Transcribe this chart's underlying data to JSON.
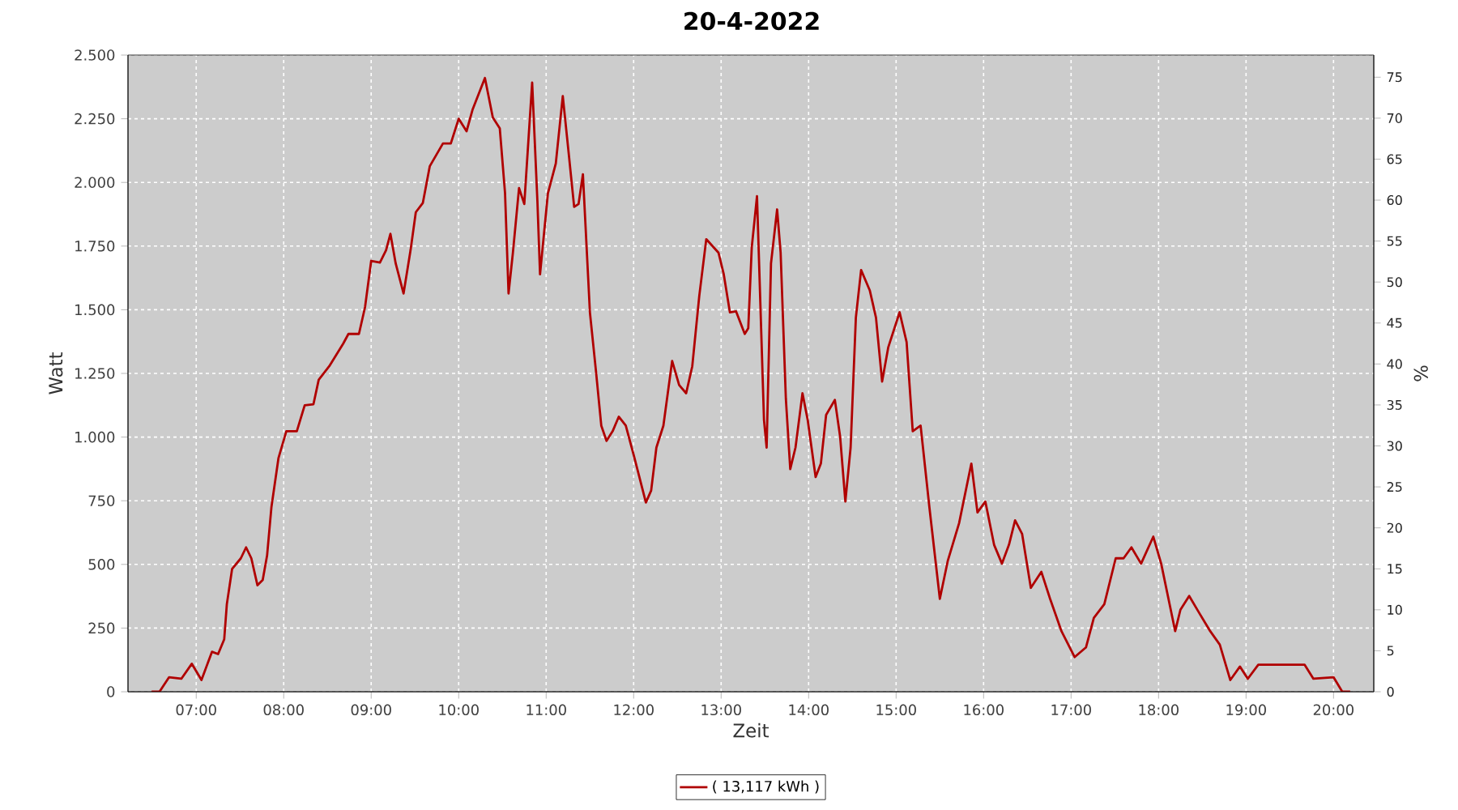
{
  "chart_data": {
    "type": "line",
    "title": "20-4-2022",
    "xlabel": "Zeit",
    "ylabel": "Watt",
    "y2label": "%",
    "x": [
      6.49,
      6.58,
      6.69,
      6.83,
      6.95,
      7.06,
      7.18,
      7.25,
      7.32,
      7.35,
      7.41,
      7.51,
      7.57,
      7.63,
      7.7,
      7.76,
      7.81,
      7.86,
      7.94,
      8.03,
      8.15,
      8.24,
      8.34,
      8.4,
      8.52,
      8.68,
      8.74,
      8.86,
      8.93,
      9.0,
      9.1,
      9.17,
      9.22,
      9.28,
      9.37,
      9.45,
      9.51,
      9.59,
      9.67,
      9.82,
      9.91,
      10.0,
      10.09,
      10.16,
      10.3,
      10.39,
      10.47,
      10.53,
      10.57,
      10.62,
      10.69,
      10.75,
      10.84,
      10.9,
      10.93,
      11.02,
      11.11,
      11.19,
      11.26,
      11.32,
      11.37,
      11.42,
      11.5,
      11.57,
      11.63,
      11.69,
      11.76,
      11.83,
      11.91,
      12.01,
      12.14,
      12.2,
      12.26,
      12.34,
      12.44,
      12.52,
      12.6,
      12.67,
      12.75,
      12.83,
      12.97,
      13.03,
      13.1,
      13.17,
      13.27,
      13.31,
      13.35,
      13.41,
      13.49,
      13.52,
      13.57,
      13.64,
      13.68,
      13.74,
      13.79,
      13.85,
      13.93,
      13.99,
      14.08,
      14.14,
      14.2,
      14.3,
      14.36,
      14.42,
      14.48,
      14.54,
      14.6,
      14.7,
      14.77,
      14.84,
      14.91,
      15.04,
      15.12,
      15.19,
      15.28,
      15.38,
      15.5,
      15.59,
      15.72,
      15.86,
      15.93,
      16.02,
      16.12,
      16.21,
      16.29,
      16.36,
      16.44,
      16.54,
      16.66,
      16.76,
      16.89,
      17.04,
      17.17,
      17.26,
      17.38,
      17.51,
      17.6,
      17.69,
      17.8,
      17.94,
      18.03,
      18.19,
      18.25,
      18.35,
      18.46,
      18.59,
      18.7,
      18.82,
      18.93,
      19.02,
      19.14,
      19.67,
      19.77,
      20.0,
      20.1,
      20.19
    ],
    "series": [
      {
        "name": "( 13,117 kWh )",
        "color": "#b00000",
        "values": [
          0,
          0,
          57,
          51,
          110,
          46,
          157,
          148,
          206,
          344,
          482,
          524,
          567,
          524,
          418,
          439,
          535,
          726,
          917,
          1023,
          1023,
          1125,
          1129,
          1225,
          1278,
          1367,
          1405,
          1405,
          1511,
          1692,
          1685,
          1734,
          1798,
          1682,
          1564,
          1734,
          1883,
          1919,
          2064,
          2153,
          2153,
          2250,
          2201,
          2287,
          2410,
          2255,
          2212,
          1957,
          1564,
          1724,
          1978,
          1915,
          2392,
          1925,
          1639,
          1957,
          2074,
          2339,
          2106,
          1904,
          1915,
          2032,
          1490,
          1257,
          1045,
          985,
          1023,
          1080,
          1045,
          917,
          743,
          790,
          959,
          1045,
          1299,
          1204,
          1172,
          1278,
          1554,
          1777,
          1724,
          1639,
          1490,
          1494,
          1405,
          1427,
          1745,
          1946,
          1066,
          959,
          1682,
          1894,
          1724,
          1150,
          874,
          959,
          1172,
          1066,
          843,
          896,
          1087,
          1146,
          1002,
          747,
          959,
          1469,
          1656,
          1575,
          1469,
          1218,
          1352,
          1490,
          1373,
          1023,
          1045,
          726,
          365,
          513,
          662,
          896,
          704,
          747,
          577,
          503,
          577,
          673,
          620,
          408,
          471,
          365,
          238,
          136,
          174,
          290,
          344,
          524,
          524,
          567,
          503,
          609,
          503,
          238,
          322,
          376,
          312,
          238,
          185,
          46,
          99,
          51,
          106,
          106,
          51,
          57,
          0,
          0
        ]
      }
    ],
    "xlim": [
      6.22,
      20.46
    ],
    "ylim": [
      0,
      2500
    ],
    "y2lim": [
      0,
      77.7
    ],
    "xticks": [
      {
        "value": 7,
        "label": "07:00"
      },
      {
        "value": 8,
        "label": "08:00"
      },
      {
        "value": 9,
        "label": "09:00"
      },
      {
        "value": 10,
        "label": "10:00"
      },
      {
        "value": 11,
        "label": "11:00"
      },
      {
        "value": 12,
        "label": "12:00"
      },
      {
        "value": 13,
        "label": "13:00"
      },
      {
        "value": 14,
        "label": "14:00"
      },
      {
        "value": 15,
        "label": "15:00"
      },
      {
        "value": 16,
        "label": "16:00"
      },
      {
        "value": 17,
        "label": "17:00"
      },
      {
        "value": 18,
        "label": "18:00"
      },
      {
        "value": 19,
        "label": "19:00"
      },
      {
        "value": 20,
        "label": "20:00"
      }
    ],
    "yticks": [
      0,
      250,
      500,
      750,
      {
        "value": 1000,
        "label": "1.000"
      },
      {
        "value": 1250,
        "label": "1.250"
      },
      {
        "value": 1500,
        "label": "1.500"
      },
      {
        "value": 1750,
        "label": "1.750"
      },
      {
        "value": 2000,
        "label": "2.000"
      },
      {
        "value": 2250,
        "label": "2.250"
      },
      {
        "value": 2500,
        "label": "2.500"
      }
    ],
    "y2ticks": [
      0,
      5,
      10,
      15,
      20,
      25,
      30,
      35,
      40,
      45,
      50,
      55,
      60,
      65,
      70,
      75
    ],
    "grid": true,
    "legend": "bottom",
    "line_style": "solid",
    "marker": "none"
  }
}
